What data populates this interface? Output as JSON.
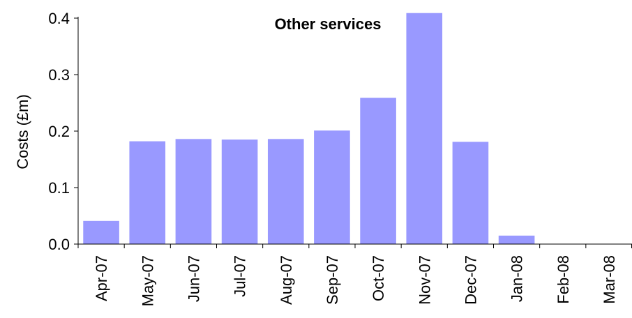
{
  "chart_data": {
    "type": "bar",
    "title": "Other services",
    "xlabel": "",
    "ylabel": "Costs (£m)",
    "ylim": [
      0,
      0.4
    ],
    "yticks": [
      "0.0",
      "0.1",
      "0.2",
      "0.3",
      "0.4"
    ],
    "categories": [
      "Apr-07",
      "May-07",
      "Jun-07",
      "Jul-07",
      "Aug-07",
      "Sep-07",
      "Oct-07",
      "Nov-07",
      "Dec-07",
      "Jan-08",
      "Feb-08",
      "Mar-08"
    ],
    "values": [
      0.041,
      0.182,
      0.186,
      0.185,
      0.186,
      0.201,
      0.259,
      0.409,
      0.181,
      0.015,
      0,
      0
    ],
    "bar_color": "#9999ff",
    "grid": false,
    "legend": "none"
  }
}
